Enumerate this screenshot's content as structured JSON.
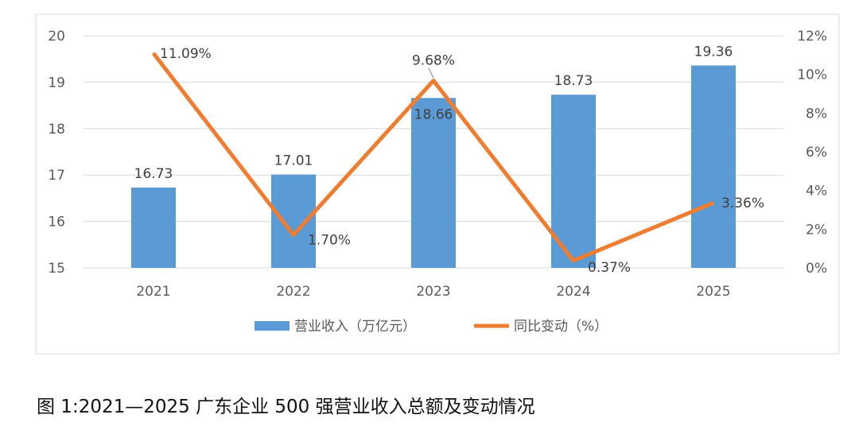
{
  "chart_data": {
    "type": "bar+line",
    "categories": [
      "2021",
      "2022",
      "2023",
      "2024",
      "2025"
    ],
    "series": [
      {
        "name": "营业收入（万亿元）",
        "type": "bar",
        "axis": "left",
        "values": [
          16.73,
          17.01,
          18.66,
          18.73,
          19.36
        ],
        "labels": [
          "16.73",
          "17.01",
          "18.66",
          "18.73",
          "19.36"
        ],
        "color": "#5B9BD5"
      },
      {
        "name": "同比变动（%）",
        "type": "line",
        "axis": "right",
        "values": [
          11.09,
          1.7,
          9.68,
          0.37,
          3.36
        ],
        "labels": [
          "11.09%",
          "1.70%",
          "9.68%",
          "0.37%",
          "3.36%"
        ],
        "color": "#ED7D31"
      }
    ],
    "ylim_left": [
      15,
      20
    ],
    "yticks_left": [
      "15",
      "16",
      "17",
      "18",
      "19",
      "20"
    ],
    "ylim_right": [
      0,
      12
    ],
    "yticks_right": [
      "0%",
      "2%",
      "4%",
      "6%",
      "8%",
      "10%",
      "12%"
    ],
    "grid": true,
    "legend": "bottom"
  },
  "caption": "图 1:2021—2025 广东企业 500 强营业收入总额及变动情况"
}
